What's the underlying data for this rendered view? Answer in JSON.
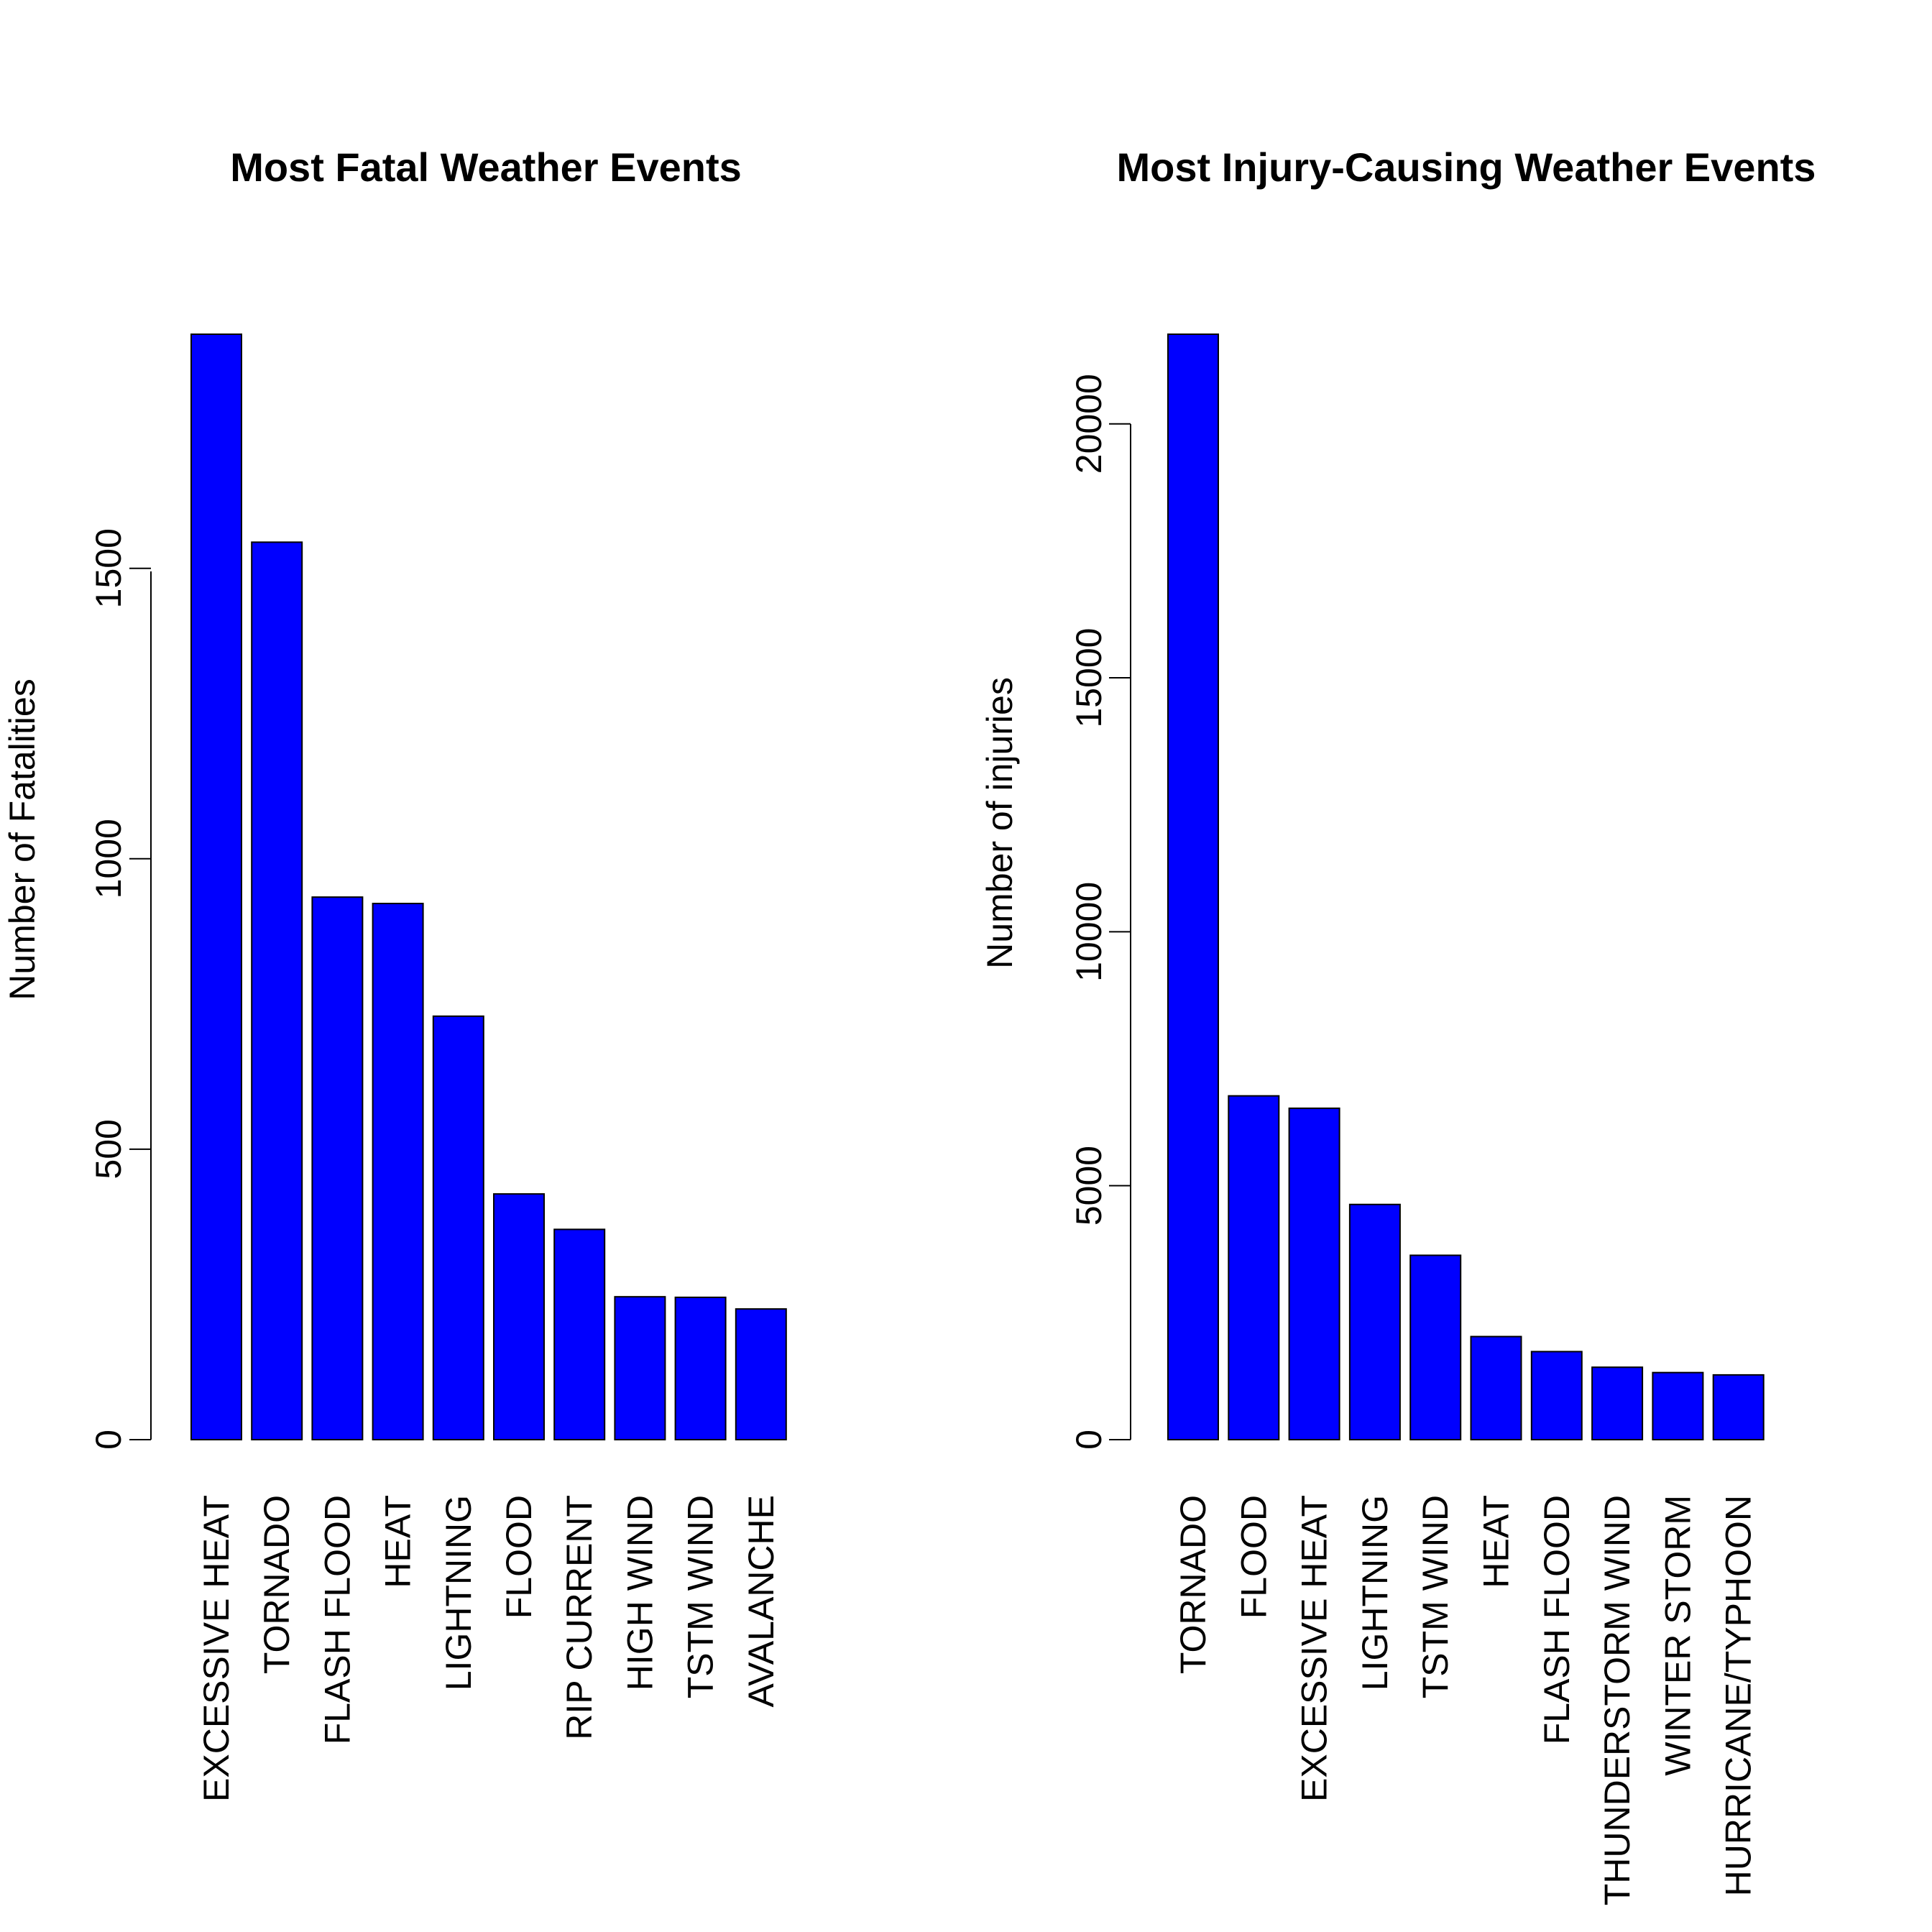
{
  "colors": {
    "bar_fill": "#0000ff",
    "bar_stroke": "#000000",
    "axis": "#000000",
    "background": "#ffffff"
  },
  "chart_data": [
    {
      "type": "bar",
      "title": "Most Fatal Weather Events",
      "xlabel": "",
      "ylabel": "Number of Fatalities",
      "categories": [
        "EXCESSIVE HEAT",
        "TORNADO",
        "FLASH FLOOD",
        "HEAT",
        "LIGHTNING",
        "FLOOD",
        "RIP CURRENT",
        "HIGH WIND",
        "TSTM WIND",
        "AVALANCHE"
      ],
      "values": [
        1903,
        1545,
        934,
        923,
        729,
        423,
        362,
        246,
        245,
        225
      ],
      "ylim": [
        0,
        1903
      ],
      "yticks": [
        0,
        500,
        1000,
        1500
      ],
      "ytick_labels": [
        "0",
        "500",
        "1000",
        "1500"
      ],
      "grid": false,
      "legend": "none"
    },
    {
      "type": "bar",
      "title": "Most Injury-Causing Weather Events",
      "xlabel": "",
      "ylabel": "Number of injuries",
      "categories": [
        "TORNADO",
        "FLOOD",
        "EXCESSIVE HEAT",
        "LIGHTNING",
        "TSTM WIND",
        "HEAT",
        "FLASH FLOOD",
        "THUNDERSTORM WIND",
        "WINTER STORM",
        "HURRICANE/TYPHOON"
      ],
      "values": [
        21765,
        6769,
        6525,
        4631,
        3630,
        2030,
        1734,
        1426,
        1321,
        1275
      ],
      "ylim": [
        0,
        21765
      ],
      "yticks": [
        0,
        5000,
        10000,
        15000,
        20000
      ],
      "ytick_labels": [
        "0",
        "5000",
        "10000",
        "15000",
        "20000"
      ],
      "grid": false,
      "legend": "none"
    }
  ]
}
